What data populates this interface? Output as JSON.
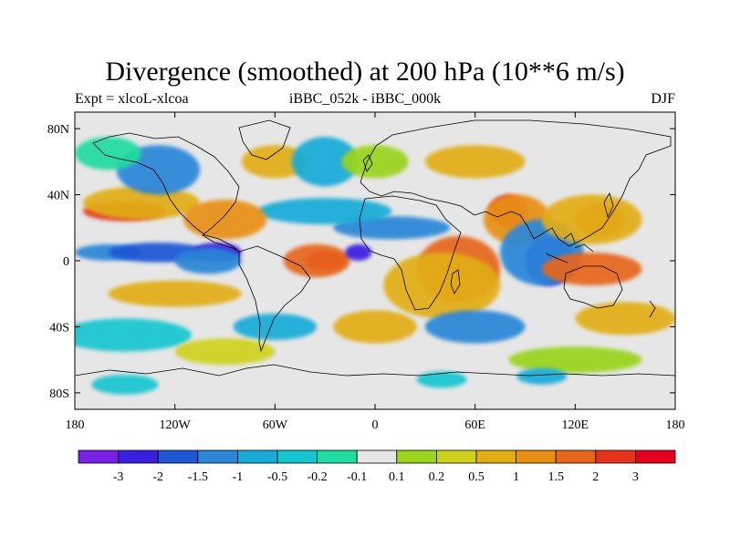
{
  "title": "Divergence (smoothed) at 200 hPa (10**6 m/s)",
  "subtitle_left": "Expt = xlcoL-xlcoa",
  "subtitle_center": "iBBC_052k - iBBC_000k",
  "subtitle_right": "DJF",
  "lat_ticks": [
    {
      "label": "80N",
      "lat": 80
    },
    {
      "label": "40N",
      "lat": 40
    },
    {
      "label": "0",
      "lat": 0
    },
    {
      "label": "40S",
      "lat": -40
    },
    {
      "label": "80S",
      "lat": -80
    }
  ],
  "lon_ticks": [
    {
      "label": "180",
      "lon": -180
    },
    {
      "label": "120W",
      "lon": -120
    },
    {
      "label": "60W",
      "lon": -60
    },
    {
      "label": "0",
      "lon": 0
    },
    {
      "label": "60E",
      "lon": 60
    },
    {
      "label": "120E",
      "lon": 120
    },
    {
      "label": "180",
      "lon": 180
    }
  ],
  "colorbar": {
    "colors": [
      "#7a1fe6",
      "#3a1fe0",
      "#1f56d6",
      "#2b86d8",
      "#19abd8",
      "#15c6d0",
      "#22dba0",
      "#e6e6e6",
      "#9ad41e",
      "#cfd21a",
      "#e2ad12",
      "#e89016",
      "#e6661a",
      "#e6341c",
      "#e6001e"
    ],
    "labels": [
      "-3",
      "-2",
      "-1.5",
      "-1",
      "-0.5",
      "-0.2",
      "-0.1",
      "0.1",
      "0.2",
      "0.5",
      "1",
      "1.5",
      "2",
      "3"
    ]
  },
  "field_blobs": [
    {
      "lon": -150,
      "lat": 30,
      "rx": 25,
      "ry": 6,
      "c": 13
    },
    {
      "lon": -140,
      "lat": 35,
      "rx": 35,
      "ry": 10,
      "c": 10
    },
    {
      "lon": -160,
      "lat": 5,
      "rx": 20,
      "ry": 5,
      "c": 3
    },
    {
      "lon": -130,
      "lat": 5,
      "rx": 30,
      "ry": 6,
      "c": 2
    },
    {
      "lon": -95,
      "lat": 5,
      "rx": 15,
      "ry": 6,
      "c": 1
    },
    {
      "lon": -100,
      "lat": 0,
      "rx": 20,
      "ry": 8,
      "c": 3
    },
    {
      "lon": -30,
      "lat": 0,
      "rx": 12,
      "ry": 6,
      "c": 14
    },
    {
      "lon": -35,
      "lat": 0,
      "rx": 20,
      "ry": 10,
      "c": 12
    },
    {
      "lon": -10,
      "lat": 5,
      "rx": 8,
      "ry": 5,
      "c": 1
    },
    {
      "lon": 10,
      "lat": 20,
      "rx": 35,
      "ry": 7,
      "c": 3
    },
    {
      "lon": -30,
      "lat": 30,
      "rx": 40,
      "ry": 8,
      "c": 4
    },
    {
      "lon": 80,
      "lat": 30,
      "rx": 12,
      "ry": 10,
      "c": 13
    },
    {
      "lon": 85,
      "lat": 25,
      "rx": 20,
      "ry": 15,
      "c": 11
    },
    {
      "lon": 105,
      "lat": 0,
      "rx": 15,
      "ry": 15,
      "c": 1
    },
    {
      "lon": 100,
      "lat": 5,
      "rx": 25,
      "ry": 20,
      "c": 3
    },
    {
      "lon": 135,
      "lat": 25,
      "rx": 15,
      "ry": 10,
      "c": 12
    },
    {
      "lon": 130,
      "lat": 25,
      "rx": 30,
      "ry": 15,
      "c": 10
    },
    {
      "lon": 130,
      "lat": -5,
      "rx": 30,
      "ry": 10,
      "c": 12
    },
    {
      "lon": 50,
      "lat": -5,
      "rx": 25,
      "ry": 20,
      "c": 12
    },
    {
      "lon": 40,
      "lat": -15,
      "rx": 35,
      "ry": 20,
      "c": 10
    },
    {
      "lon": -90,
      "lat": 25,
      "rx": 25,
      "ry": 12,
      "c": 11
    },
    {
      "lon": -130,
      "lat": 55,
      "rx": 25,
      "ry": 15,
      "c": 3
    },
    {
      "lon": -60,
      "lat": 60,
      "rx": 20,
      "ry": 10,
      "c": 10
    },
    {
      "lon": -30,
      "lat": 60,
      "rx": 20,
      "ry": 15,
      "c": 4
    },
    {
      "lon": 60,
      "lat": 60,
      "rx": 30,
      "ry": 10,
      "c": 10
    },
    {
      "lon": 0,
      "lat": 60,
      "rx": 20,
      "ry": 10,
      "c": 8
    },
    {
      "lon": -160,
      "lat": 65,
      "rx": 20,
      "ry": 10,
      "c": 6
    },
    {
      "lon": -120,
      "lat": -20,
      "rx": 40,
      "ry": 8,
      "c": 10
    },
    {
      "lon": -60,
      "lat": -40,
      "rx": 25,
      "ry": 8,
      "c": 4
    },
    {
      "lon": 0,
      "lat": -40,
      "rx": 25,
      "ry": 10,
      "c": 10
    },
    {
      "lon": 60,
      "lat": -40,
      "rx": 30,
      "ry": 10,
      "c": 3
    },
    {
      "lon": 150,
      "lat": -35,
      "rx": 30,
      "ry": 10,
      "c": 10
    },
    {
      "lon": -150,
      "lat": -45,
      "rx": 40,
      "ry": 10,
      "c": 5
    },
    {
      "lon": -90,
      "lat": -55,
      "rx": 30,
      "ry": 8,
      "c": 9
    },
    {
      "lon": 120,
      "lat": -60,
      "rx": 40,
      "ry": 8,
      "c": 8
    },
    {
      "lon": -150,
      "lat": -75,
      "rx": 20,
      "ry": 6,
      "c": 5
    },
    {
      "lon": 40,
      "lat": -72,
      "rx": 15,
      "ry": 5,
      "c": 5
    },
    {
      "lon": 100,
      "lat": -70,
      "rx": 15,
      "ry": 5,
      "c": 4
    }
  ]
}
